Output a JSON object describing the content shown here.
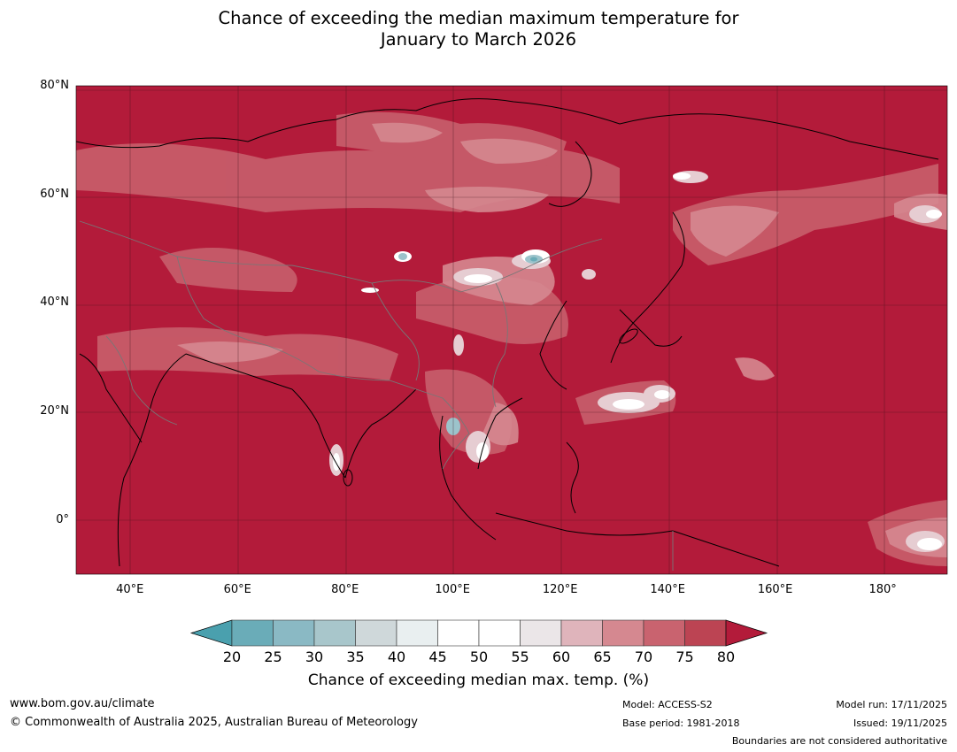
{
  "title": {
    "line1": "Chance of exceeding the median maximum temperature for",
    "line2": "January to March 2026"
  },
  "map": {
    "lon_range": [
      30,
      192
    ],
    "lat_range": [
      -10,
      80
    ],
    "lat_ticks": [
      {
        "value": 80,
        "label": "80°N"
      },
      {
        "value": 60,
        "label": "60°N"
      },
      {
        "value": 40,
        "label": "40°N"
      },
      {
        "value": 20,
        "label": "20°N"
      },
      {
        "value": 0,
        "label": "0°"
      }
    ],
    "lon_ticks": [
      {
        "value": 40,
        "label": "40°E"
      },
      {
        "value": 60,
        "label": "60°E"
      },
      {
        "value": 80,
        "label": "80°E"
      },
      {
        "value": 100,
        "label": "100°E"
      },
      {
        "value": 120,
        "label": "120°E"
      },
      {
        "value": 140,
        "label": "140°E"
      },
      {
        "value": 160,
        "label": "160°E"
      },
      {
        "value": 180,
        "label": "180°"
      }
    ],
    "background_color": "#b31b3a"
  },
  "colorbar": {
    "ticks": [
      "20",
      "25",
      "30",
      "35",
      "40",
      "45",
      "50",
      "55",
      "60",
      "65",
      "70",
      "75",
      "80"
    ],
    "colors": [
      "#6aacb8",
      "#8ab9c4",
      "#a8c6cb",
      "#cfd8da",
      "#e9eff0",
      "#ffffff",
      "#ffffff",
      "#ebe6e8",
      "#dfb4bb",
      "#d58890",
      "#c9636f",
      "#bc4453"
    ],
    "under_color": "#4aa0ae",
    "over_color": "#b31b3a",
    "label": "Chance of exceeding median max. temp. (%)"
  },
  "footer": {
    "website": "www.bom.gov.au/climate",
    "copyright": "© Commonwealth of Australia 2025, Australian Bureau of Meteorology",
    "model": "Model: ACCESS-S2",
    "base_period": "Base period: 1981-2018",
    "model_run": "Model run: 17/11/2025",
    "issued": "Issued: 19/11/2025",
    "boundaries": "Boundaries are not considered authoritative"
  }
}
